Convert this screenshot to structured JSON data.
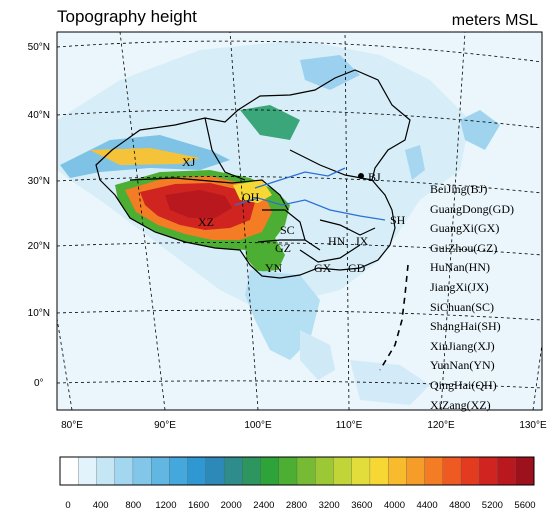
{
  "title": "Topography height",
  "units": "meters MSL",
  "lat_labels": [
    "50°N",
    "40°N",
    "30°N",
    "20°N",
    "10°N",
    "0°"
  ],
  "lon_labels": [
    "80°E",
    "90°E",
    "100°E",
    "110°E",
    "120°E",
    "130°E"
  ],
  "province_labels": [
    "XJ",
    "XZ",
    "QH",
    "SC",
    "GZ",
    "YN",
    "GX",
    "GD",
    "HN",
    "JX",
    "SH",
    "BJ"
  ],
  "legend": [
    "BeiJing(BJ)",
    "GuangDong(GD)",
    "GuangXi(GX)",
    "GuiZhou(GZ)",
    "HuNan(HN)",
    "JiangXi(JX)",
    "SiChuan(SC)",
    "ShangHai(SH)",
    "XinJiang(XJ)",
    "YunNan(YN)",
    "QingHai(QH)",
    "XiZang(XZ)"
  ],
  "colorbar": {
    "tick_labels": [
      "0",
      "400",
      "800",
      "1200",
      "1600",
      "2000",
      "2400",
      "2800",
      "3200",
      "3600",
      "4000",
      "4400",
      "4800",
      "5200",
      "5600"
    ],
    "colors": [
      "#ffffff",
      "#e3f3fb",
      "#c4e6f5",
      "#a3d6ef",
      "#82c7e9",
      "#62b7e2",
      "#45a8dc",
      "#2f97d2",
      "#2d8ab8",
      "#2e8d8c",
      "#2d9660",
      "#2da33a",
      "#4cae32",
      "#76bb33",
      "#9cc835",
      "#c1d438",
      "#e2dd3a",
      "#f6d734",
      "#f8bb2e",
      "#f69c29",
      "#f37c25",
      "#ee5a22",
      "#e33b20",
      "#cf241f",
      "#b8181e",
      "#9c111c"
    ]
  }
}
